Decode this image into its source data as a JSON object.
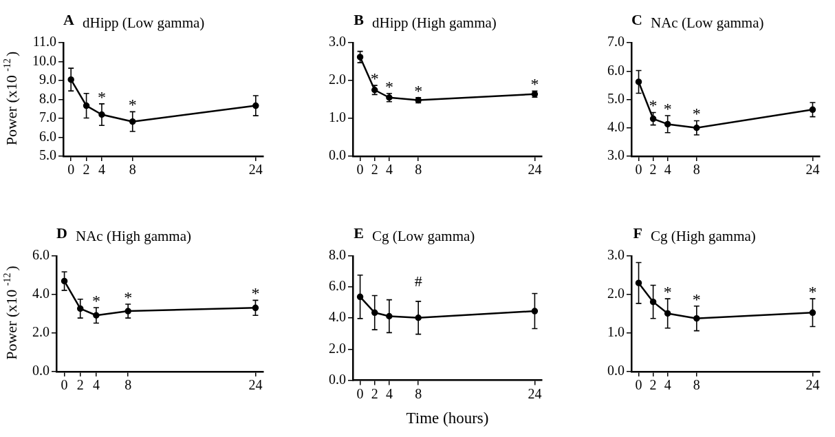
{
  "chart_data": [
    {
      "type": "line",
      "title": "dHipp (Low gamma)",
      "ylabel": "Power (x10 $^{-12}$)",
      "x": [
        0,
        2,
        4,
        8,
        24
      ],
      "xlim": [
        -1,
        25
      ],
      "xticks": [
        0,
        2,
        4,
        8,
        24
      ],
      "ylim": [
        5,
        11
      ],
      "yticks": [
        {
          "value": 5,
          "label": "5.0"
        },
        {
          "value": 6,
          "label": "6.0"
        },
        {
          "value": 7,
          "label": "7.0"
        },
        {
          "value": 8,
          "label": "8.0"
        },
        {
          "value": 9,
          "label": "9.0"
        },
        {
          "value": 10,
          "label": "10.0"
        },
        {
          "value": 11,
          "label": "11.0"
        }
      ],
      "grid": false,
      "marker": "circle",
      "legend": false,
      "series": [
        {
          "color": "#000000",
          "values": [
            9.05,
            7.67,
            7.2,
            6.83,
            7.67
          ],
          "errors": [
            0.6,
            0.65,
            0.57,
            0.52,
            0.53
          ]
        }
      ],
      "annotations": [
        "A",
        {
          "text": "*",
          "x": 4,
          "y": 7.2
        },
        {
          "text": "*",
          "x": 8,
          "y": 6.83
        }
      ]
    },
    {
      "type": "line",
      "title": "dHipp (High gamma)",
      "x": [
        0,
        2,
        4,
        8,
        24
      ],
      "xlim": [
        -1,
        25
      ],
      "xticks": [
        0,
        2,
        4,
        8,
        24
      ],
      "ylim": [
        0,
        3
      ],
      "yticks": [
        {
          "value": 0,
          "label": "0.0"
        },
        {
          "value": 1,
          "label": "1.0"
        },
        {
          "value": 2,
          "label": "2.0"
        },
        {
          "value": 3,
          "label": "3.0"
        }
      ],
      "grid": false,
      "marker": "circle",
      "legend": false,
      "series": [
        {
          "color": "#000000",
          "values": [
            2.62,
            1.75,
            1.55,
            1.48,
            1.64
          ],
          "errors": [
            0.15,
            0.12,
            0.11,
            0.07,
            0.08
          ]
        }
      ],
      "annotations": [
        "B",
        {
          "text": "*",
          "x": 2,
          "y": 1.75
        },
        {
          "text": "*",
          "x": 4,
          "y": 1.55
        },
        {
          "text": "*",
          "x": 8,
          "y": 1.48
        },
        {
          "text": "*",
          "x": 24,
          "y": 1.64
        }
      ]
    },
    {
      "type": "line",
      "title": "NAc (Low gamma)",
      "x": [
        0,
        2,
        4,
        8,
        24
      ],
      "xlim": [
        -1,
        25
      ],
      "xticks": [
        0,
        2,
        4,
        8,
        24
      ],
      "ylim": [
        3,
        7
      ],
      "yticks": [
        {
          "value": 3,
          "label": "3.0"
        },
        {
          "value": 4,
          "label": "4.0"
        },
        {
          "value": 5,
          "label": "5.0"
        },
        {
          "value": 6,
          "label": "6.0"
        },
        {
          "value": 7,
          "label": "7.0"
        }
      ],
      "grid": false,
      "marker": "circle",
      "legend": false,
      "series": [
        {
          "color": "#000000",
          "values": [
            5.62,
            4.32,
            4.13,
            4.0,
            4.64
          ],
          "errors": [
            0.4,
            0.22,
            0.3,
            0.25,
            0.25
          ]
        }
      ],
      "annotations": [
        "C",
        {
          "text": "*",
          "x": 2,
          "y": 4.32
        },
        {
          "text": "*",
          "x": 4,
          "y": 4.13
        },
        {
          "text": "*",
          "x": 8,
          "y": 4.0
        }
      ]
    },
    {
      "type": "line",
      "title": "NAc (High gamma)",
      "ylabel": "Power (x10 $^{-12}$)",
      "x": [
        0,
        2,
        4,
        8,
        24
      ],
      "xlim": [
        -1,
        25
      ],
      "xticks": [
        0,
        2,
        4,
        8,
        24
      ],
      "ylim": [
        0,
        6
      ],
      "yticks": [
        {
          "value": 0,
          "label": "0.0"
        },
        {
          "value": 2,
          "label": "2.0"
        },
        {
          "value": 4,
          "label": "4.0"
        },
        {
          "value": 6,
          "label": "6.0"
        }
      ],
      "grid": false,
      "marker": "circle",
      "legend": false,
      "series": [
        {
          "color": "#000000",
          "values": [
            4.7,
            3.27,
            2.92,
            3.14,
            3.31
          ],
          "errors": [
            0.48,
            0.49,
            0.4,
            0.36,
            0.39
          ]
        }
      ],
      "annotations": [
        "D",
        {
          "text": "*",
          "x": 4,
          "y": 2.92
        },
        {
          "text": "*",
          "x": 8,
          "y": 3.14
        },
        {
          "text": "*",
          "x": 24,
          "y": 3.31
        }
      ]
    },
    {
      "type": "line",
      "title": "Cg (Low gamma)",
      "xlabel": "Time (hours)",
      "x": [
        0,
        2,
        4,
        8,
        24
      ],
      "xlim": [
        -1,
        25
      ],
      "xticks": [
        0,
        2,
        4,
        8,
        24
      ],
      "ylim": [
        0,
        8
      ],
      "yticks": [
        {
          "value": 0,
          "label": "0.0"
        },
        {
          "value": 2,
          "label": "2.0"
        },
        {
          "value": 4,
          "label": "4.0"
        },
        {
          "value": 6,
          "label": "6.0"
        },
        {
          "value": 8,
          "label": "8.0"
        }
      ],
      "grid": false,
      "marker": "circle",
      "legend": false,
      "series": [
        {
          "color": "#000000",
          "values": [
            5.37,
            4.35,
            4.12,
            4.02,
            4.45
          ],
          "errors": [
            1.4,
            1.1,
            1.06,
            1.06,
            1.13
          ]
        }
      ],
      "annotations": [
        "E",
        {
          "text": "#",
          "x": 8,
          "y": 4.02
        }
      ]
    },
    {
      "type": "line",
      "title": "Cg (High gamma)",
      "x": [
        0,
        2,
        4,
        8,
        24
      ],
      "xlim": [
        -1,
        25
      ],
      "xticks": [
        0,
        2,
        4,
        8,
        24
      ],
      "ylim": [
        0,
        3
      ],
      "yticks": [
        {
          "value": 0,
          "label": "0.0"
        },
        {
          "value": 1,
          "label": "1.0"
        },
        {
          "value": 2,
          "label": "2.0"
        },
        {
          "value": 3,
          "label": "3.0"
        }
      ],
      "grid": false,
      "marker": "circle",
      "legend": false,
      "series": [
        {
          "color": "#000000",
          "values": [
            2.3,
            1.81,
            1.51,
            1.38,
            1.53
          ],
          "errors": [
            0.53,
            0.43,
            0.38,
            0.32,
            0.36
          ]
        }
      ],
      "annotations": [
        "F",
        {
          "text": "*",
          "x": 4,
          "y": 1.51
        },
        {
          "text": "*",
          "x": 8,
          "y": 1.38
        },
        {
          "text": "*",
          "x": 24,
          "y": 1.53
        }
      ]
    }
  ]
}
